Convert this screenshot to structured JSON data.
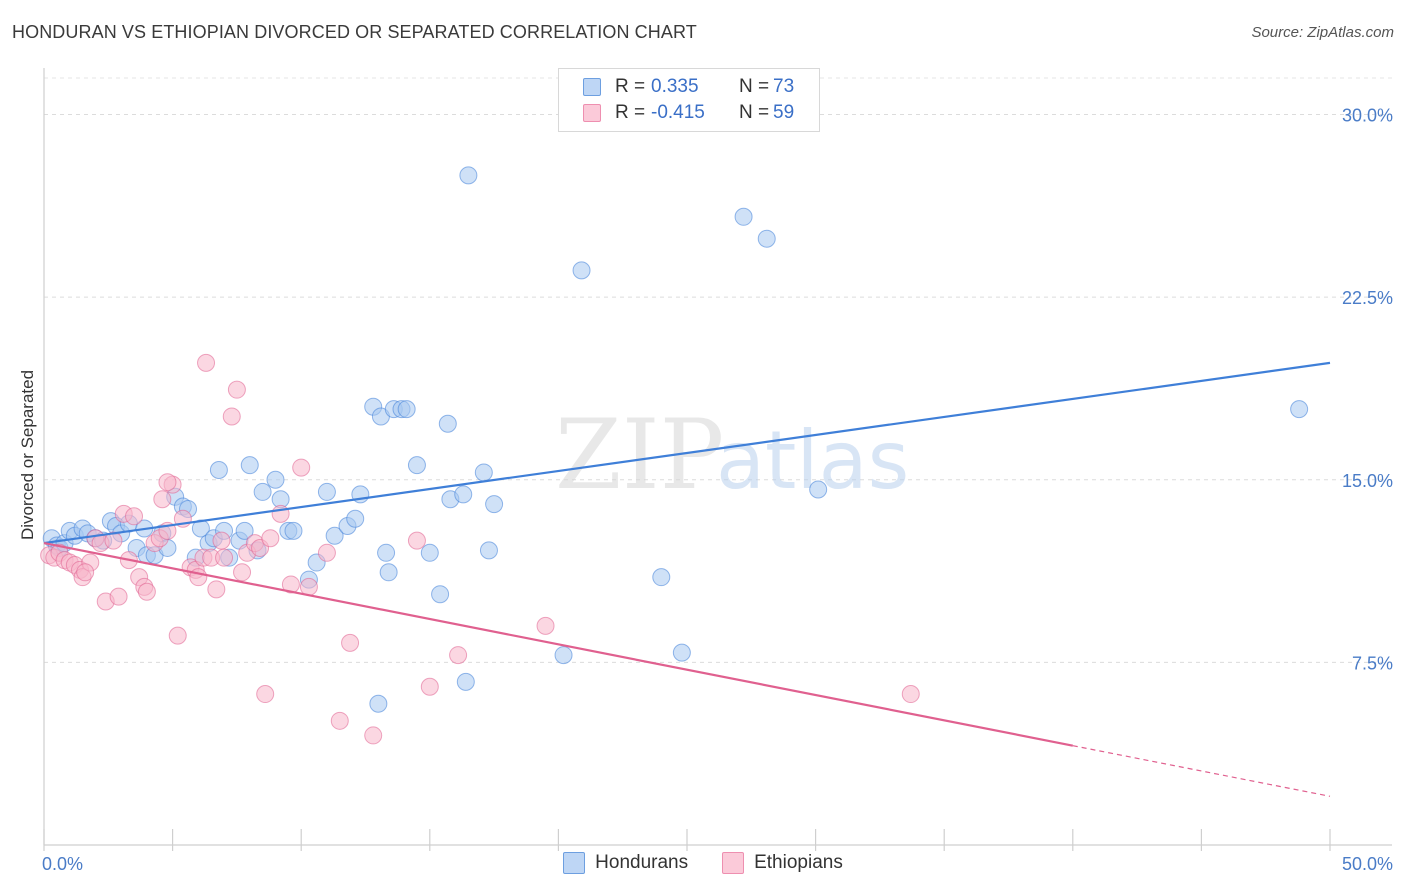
{
  "header": {
    "title": "HONDURAN VS ETHIOPIAN DIVORCED OR SEPARATED CORRELATION CHART",
    "source": "Source: ZipAtlas.com"
  },
  "watermark": {
    "part1": "ZIP",
    "part2": "atlas"
  },
  "legend": {
    "rows": [
      {
        "r_label": "R =",
        "r_value": "0.335",
        "n_label": "N =",
        "n_value": "73",
        "color": "#a8c8f0"
      },
      {
        "r_label": "R =",
        "r_value": "-0.415",
        "n_label": "N =",
        "n_value": "59",
        "color": "#f7b6cb"
      }
    ]
  },
  "bottom_legend": {
    "hondurans": "Hondurans",
    "ethiopians": "Ethiopians"
  },
  "chart_data": {
    "type": "scatter",
    "title": "HONDURAN VS ETHIOPIAN DIVORCED OR SEPARATED CORRELATION CHART",
    "xlabel": "",
    "ylabel": "Divorced or Separated",
    "xlim": [
      0,
      50
    ],
    "ylim": [
      0,
      31.5
    ],
    "x_tick_labels": [
      "0.0%",
      "50.0%"
    ],
    "y_ticks": [
      7.5,
      15.0,
      22.5,
      30.0
    ],
    "y_tick_labels": [
      "7.5%",
      "15.0%",
      "22.5%",
      "30.0%"
    ],
    "grid": true,
    "legend_position": "top-center",
    "series": [
      {
        "name": "Hondurans",
        "color": "#3f7fd8",
        "fill": "#a8c8f0",
        "trend": {
          "x": [
            0,
            50
          ],
          "y": [
            12.4,
            19.8
          ],
          "dashed_from": null
        },
        "points": [
          [
            0.3,
            12.6
          ],
          [
            0.5,
            12.3
          ],
          [
            0.6,
            12.2
          ],
          [
            0.8,
            12.4
          ],
          [
            1.0,
            12.9
          ],
          [
            1.2,
            12.7
          ],
          [
            1.5,
            13.0
          ],
          [
            1.7,
            12.8
          ],
          [
            2.0,
            12.6
          ],
          [
            2.3,
            12.5
          ],
          [
            2.6,
            13.3
          ],
          [
            2.8,
            13.1
          ],
          [
            3.0,
            12.8
          ],
          [
            3.3,
            13.2
          ],
          [
            3.6,
            12.2
          ],
          [
            3.9,
            13.0
          ],
          [
            4.0,
            11.9
          ],
          [
            4.3,
            11.9
          ],
          [
            4.6,
            12.8
          ],
          [
            4.8,
            12.2
          ],
          [
            5.1,
            14.3
          ],
          [
            5.4,
            13.9
          ],
          [
            5.6,
            13.8
          ],
          [
            5.9,
            11.8
          ],
          [
            6.1,
            13.0
          ],
          [
            6.4,
            12.4
          ],
          [
            6.6,
            12.6
          ],
          [
            6.8,
            15.4
          ],
          [
            7.0,
            12.9
          ],
          [
            7.2,
            11.8
          ],
          [
            7.6,
            12.5
          ],
          [
            7.8,
            12.9
          ],
          [
            8.0,
            15.6
          ],
          [
            8.3,
            12.1
          ],
          [
            8.5,
            14.5
          ],
          [
            9.0,
            15.0
          ],
          [
            9.2,
            14.2
          ],
          [
            9.5,
            12.9
          ],
          [
            9.7,
            12.9
          ],
          [
            10.3,
            10.9
          ],
          [
            10.6,
            11.6
          ],
          [
            11.0,
            14.5
          ],
          [
            11.3,
            12.7
          ],
          [
            11.8,
            13.1
          ],
          [
            12.1,
            13.4
          ],
          [
            12.3,
            14.4
          ],
          [
            12.8,
            18.0
          ],
          [
            13.1,
            17.6
          ],
          [
            13.3,
            12.0
          ],
          [
            13.4,
            11.2
          ],
          [
            13.6,
            17.9
          ],
          [
            13.9,
            17.9
          ],
          [
            14.1,
            17.9
          ],
          [
            14.5,
            15.6
          ],
          [
            15.0,
            12.0
          ],
          [
            15.4,
            10.3
          ],
          [
            15.7,
            17.3
          ],
          [
            15.8,
            14.2
          ],
          [
            16.3,
            14.4
          ],
          [
            16.4,
            6.7
          ],
          [
            16.5,
            27.5
          ],
          [
            17.1,
            15.3
          ],
          [
            17.5,
            14.0
          ],
          [
            17.3,
            12.1
          ],
          [
            13.0,
            5.8
          ],
          [
            20.2,
            7.8
          ],
          [
            20.9,
            23.6
          ],
          [
            24.0,
            11.0
          ],
          [
            24.8,
            7.9
          ],
          [
            27.2,
            25.8
          ],
          [
            28.1,
            24.9
          ],
          [
            30.1,
            14.6
          ],
          [
            48.8,
            17.9
          ]
        ]
      },
      {
        "name": "Ethiopians",
        "color": "#e0608f",
        "fill": "#f7b6cb",
        "trend": {
          "x": [
            0,
            50
          ],
          "y": [
            12.4,
            2.0
          ],
          "dashed_from": 40
        },
        "points": [
          [
            0.2,
            11.9
          ],
          [
            0.4,
            11.8
          ],
          [
            0.6,
            12.0
          ],
          [
            0.8,
            11.7
          ],
          [
            1.0,
            11.6
          ],
          [
            1.2,
            11.5
          ],
          [
            1.4,
            11.3
          ],
          [
            1.5,
            11.0
          ],
          [
            1.8,
            11.6
          ],
          [
            2.0,
            12.6
          ],
          [
            2.2,
            12.4
          ],
          [
            2.4,
            10.0
          ],
          [
            2.7,
            12.5
          ],
          [
            2.9,
            10.2
          ],
          [
            3.1,
            13.6
          ],
          [
            3.3,
            11.7
          ],
          [
            3.5,
            13.5
          ],
          [
            3.7,
            11.0
          ],
          [
            3.9,
            10.6
          ],
          [
            4.0,
            10.4
          ],
          [
            4.3,
            12.4
          ],
          [
            4.5,
            12.6
          ],
          [
            4.6,
            14.2
          ],
          [
            4.8,
            12.9
          ],
          [
            5.0,
            14.8
          ],
          [
            5.2,
            8.6
          ],
          [
            5.4,
            13.4
          ],
          [
            5.7,
            11.4
          ],
          [
            5.9,
            11.3
          ],
          [
            6.0,
            11.0
          ],
          [
            6.2,
            11.8
          ],
          [
            6.3,
            19.8
          ],
          [
            6.5,
            11.8
          ],
          [
            6.7,
            10.5
          ],
          [
            6.9,
            12.5
          ],
          [
            7.0,
            11.8
          ],
          [
            7.3,
            17.6
          ],
          [
            7.5,
            18.7
          ],
          [
            7.7,
            11.2
          ],
          [
            7.9,
            12.0
          ],
          [
            8.2,
            12.4
          ],
          [
            8.4,
            12.2
          ],
          [
            8.6,
            6.2
          ],
          [
            8.8,
            12.6
          ],
          [
            9.2,
            13.6
          ],
          [
            9.6,
            10.7
          ],
          [
            10.0,
            15.5
          ],
          [
            10.3,
            10.6
          ],
          [
            11.0,
            12.0
          ],
          [
            11.5,
            5.1
          ],
          [
            11.9,
            8.3
          ],
          [
            12.8,
            4.5
          ],
          [
            14.5,
            12.5
          ],
          [
            15.0,
            6.5
          ],
          [
            16.1,
            7.8
          ],
          [
            19.5,
            9.0
          ],
          [
            33.7,
            6.2
          ],
          [
            4.8,
            14.9
          ],
          [
            1.6,
            11.2
          ]
        ]
      }
    ]
  }
}
